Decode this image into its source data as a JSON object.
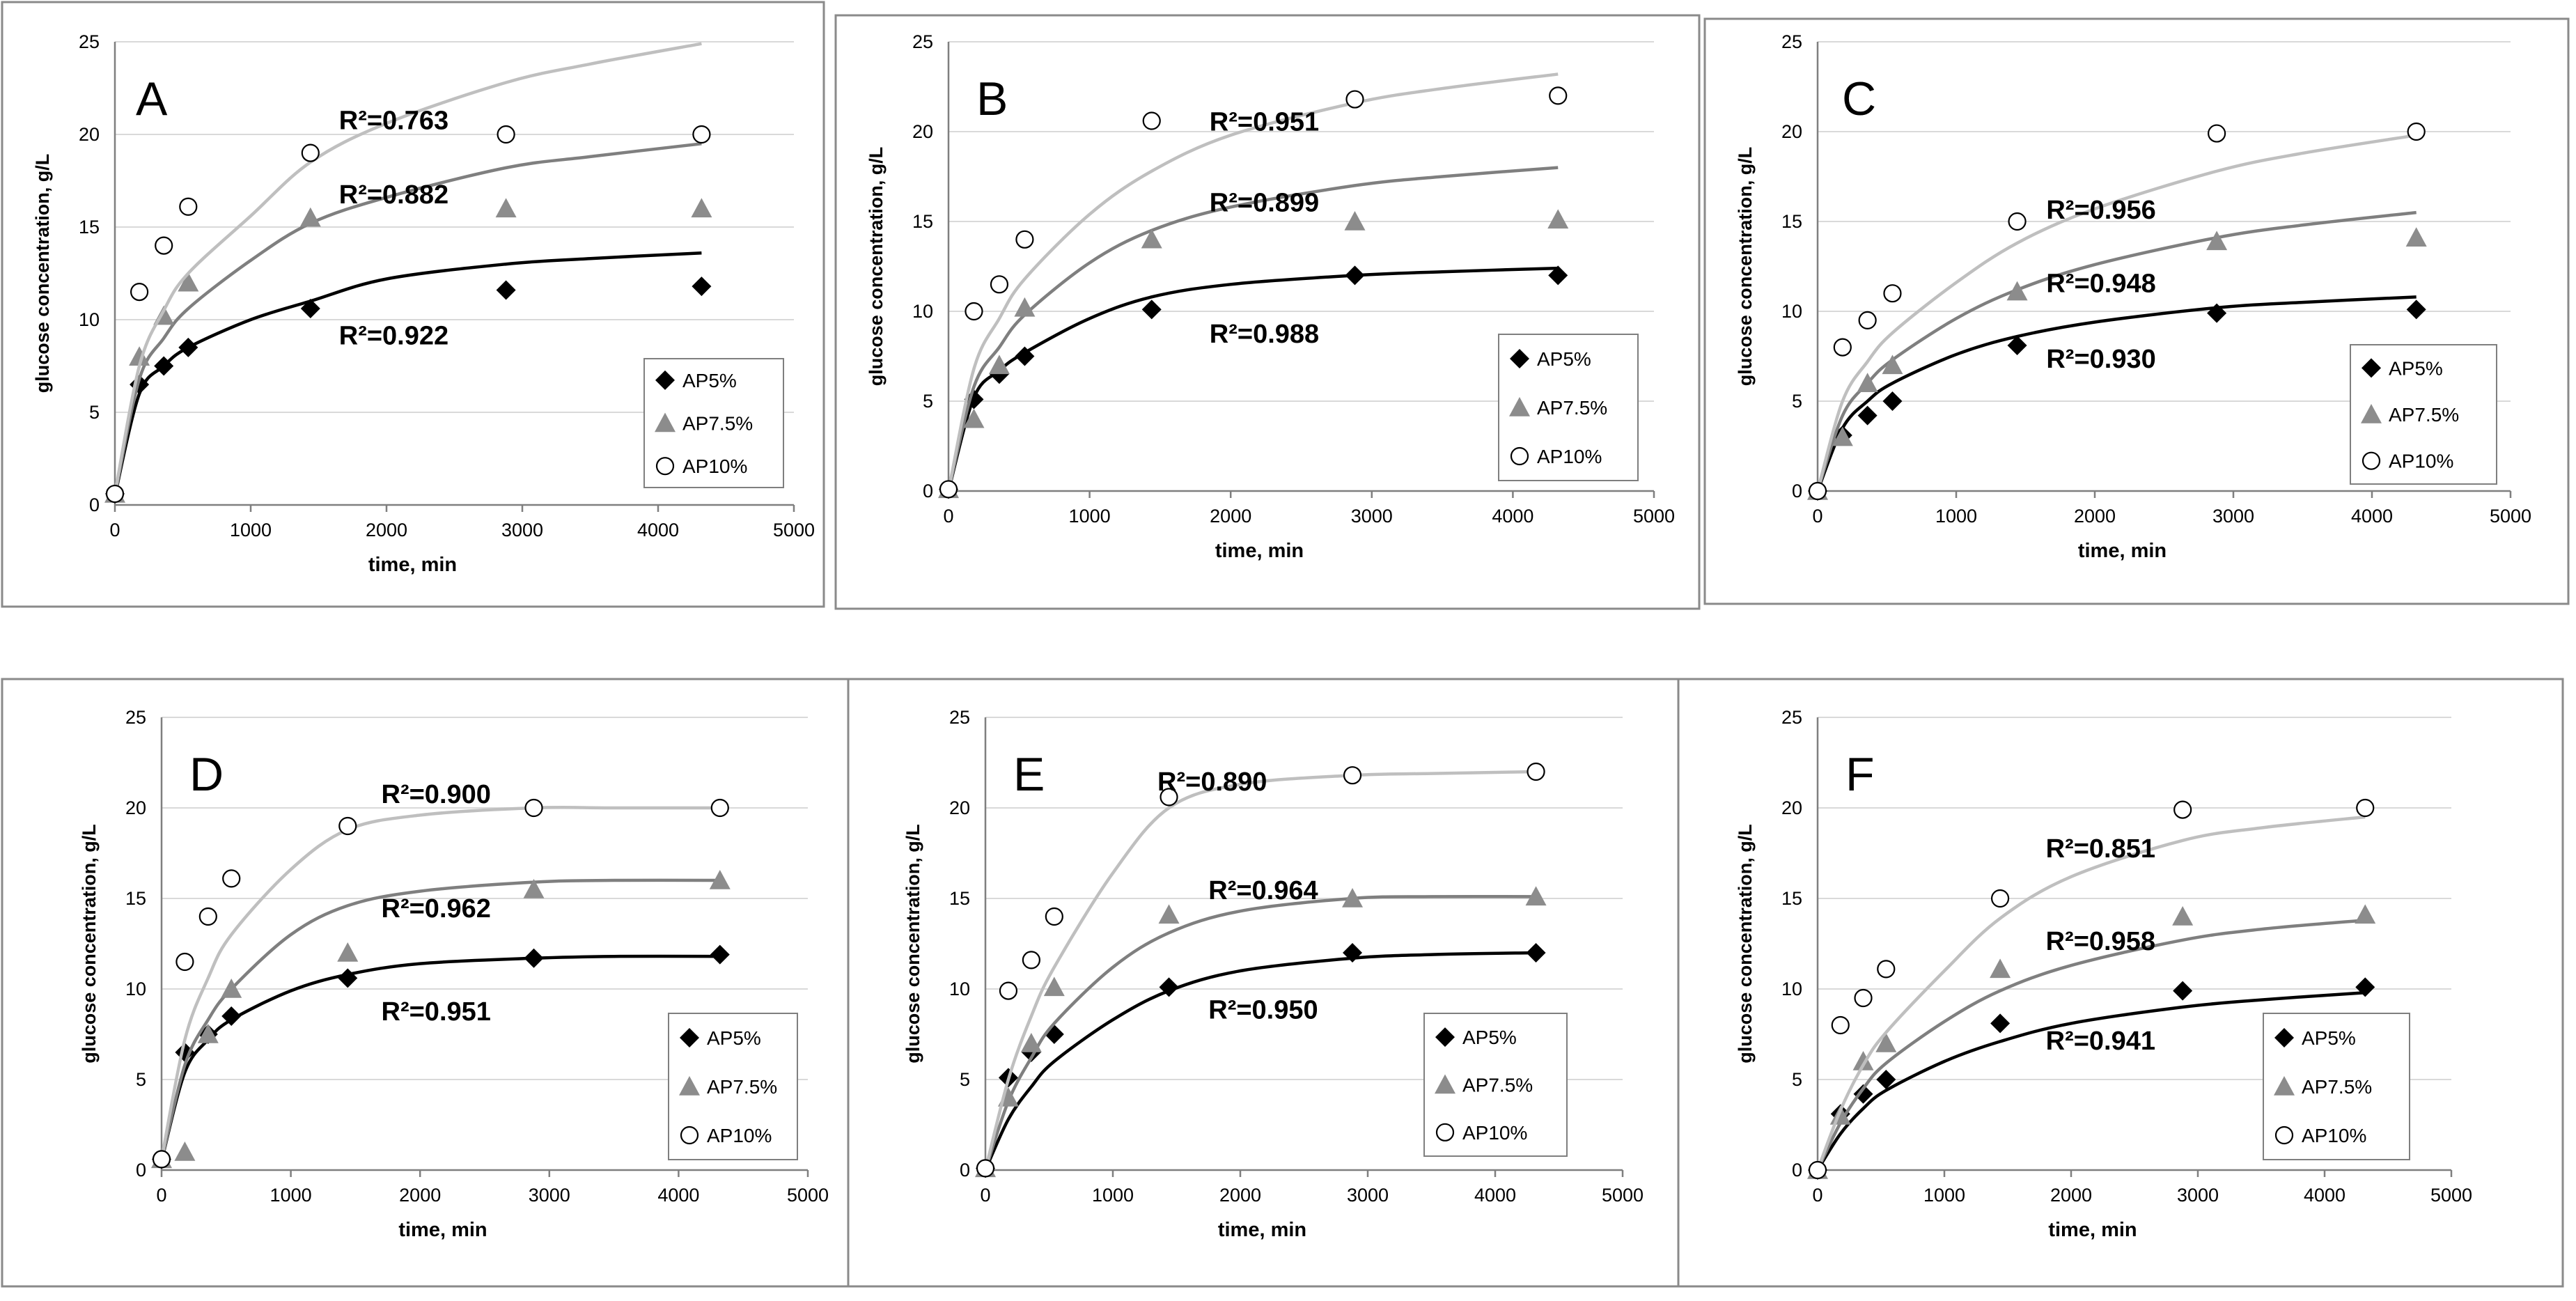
{
  "figure": {
    "colors": {
      "AP5%": "#000000",
      "AP7.5%": "#7f7f7f",
      "AP10%": "#bfbfbf",
      "marker_triangle": "#8c8c8c",
      "grid": "#d9d9d9",
      "frame": "#8a8a8a"
    }
  },
  "chart_data": [
    {
      "panel": "A",
      "type": "scatter",
      "xlabel": "time, min",
      "ylabel": "glucose concentration, g/L",
      "xlim": [
        0,
        5000
      ],
      "ylim": [
        0,
        25
      ],
      "xticks": [
        0,
        1000,
        2000,
        3000,
        4000,
        5000
      ],
      "yticks": [
        0,
        5,
        10,
        15,
        20,
        25
      ],
      "legend": [
        "AP5%",
        "AP7.5%",
        "AP10%"
      ],
      "legend_position": "right",
      "x": [
        0,
        180,
        360,
        540,
        1440,
        2880,
        4320
      ],
      "series": [
        {
          "name": "AP5%",
          "marker": "diamond",
          "values": [
            0.6,
            6.5,
            7.5,
            8.5,
            10.6,
            11.6,
            11.8
          ],
          "fit": {
            "x": [
              0,
              180,
              360,
              540,
              1000,
              1440,
              2000,
              2880,
              3500,
              4320
            ],
            "y": [
              0.5,
              6.0,
              7.5,
              8.5,
              10.0,
              11.0,
              12.2,
              13.0,
              13.3,
              13.6
            ]
          },
          "r2": "R²=0.922",
          "r2_at": [
            1650,
            9.2
          ]
        },
        {
          "name": "AP7.5%",
          "marker": "triangle",
          "values": [
            0.6,
            8.0,
            10.2,
            12.0,
            15.5,
            16.0,
            16.0
          ],
          "fit": {
            "x": [
              0,
              180,
              360,
              540,
              1000,
              1440,
              2000,
              2880,
              3500,
              4320
            ],
            "y": [
              0.5,
              6.8,
              9.0,
              10.6,
              13.2,
              15.2,
              16.6,
              18.2,
              18.8,
              19.5
            ]
          },
          "r2": "R²=0.882",
          "r2_at": [
            1650,
            16.8
          ]
        },
        {
          "name": "AP10%",
          "marker": "circle",
          "values": [
            0.6,
            11.5,
            14.0,
            16.1,
            19.0,
            20.0,
            20.0
          ],
          "fit": {
            "x": [
              0,
              180,
              360,
              540,
              1000,
              1440,
              2000,
              2880,
              3500,
              4320
            ],
            "y": [
              0.6,
              7.5,
              10.5,
              12.5,
              15.6,
              18.5,
              20.6,
              22.8,
              23.8,
              24.9
            ]
          },
          "r2": "R²=0.763",
          "r2_at": [
            1650,
            20.8
          ]
        }
      ]
    },
    {
      "panel": "B",
      "type": "scatter",
      "xlabel": "time, min",
      "ylabel": "glucose concentration, g/L",
      "xlim": [
        0,
        5000
      ],
      "ylim": [
        0,
        25
      ],
      "xticks": [
        0,
        1000,
        2000,
        3000,
        4000,
        5000
      ],
      "yticks": [
        0,
        5,
        10,
        15,
        20,
        25
      ],
      "legend": [
        "AP5%",
        "AP7.5%",
        "AP10%"
      ],
      "legend_position": "right",
      "x": [
        0,
        180,
        360,
        540,
        1440,
        2880,
        4320
      ],
      "series": [
        {
          "name": "AP5%",
          "marker": "diamond",
          "values": [
            0.1,
            5.1,
            6.5,
            7.5,
            10.1,
            12.0,
            12.0
          ],
          "fit": {
            "x": [
              0,
              180,
              360,
              540,
              1000,
              1440,
              2000,
              2880,
              3500,
              4320
            ],
            "y": [
              0.0,
              5.2,
              6.7,
              7.7,
              9.6,
              10.8,
              11.5,
              12.0,
              12.2,
              12.4
            ]
          },
          "r2": "R²=0.988",
          "r2_at": [
            1850,
            8.8
          ]
        },
        {
          "name": "AP7.5%",
          "marker": "triangle",
          "values": [
            0.1,
            4.0,
            7.0,
            10.2,
            14.0,
            15.0,
            15.1
          ],
          "fit": {
            "x": [
              0,
              180,
              360,
              540,
              1000,
              1440,
              2000,
              2880,
              3500,
              4320
            ],
            "y": [
              0.0,
              5.8,
              8.0,
              9.8,
              12.7,
              14.5,
              15.8,
              17.0,
              17.5,
              18.0
            ]
          },
          "r2": "R²=0.899",
          "r2_at": [
            1850,
            16.1
          ]
        },
        {
          "name": "AP10%",
          "marker": "circle",
          "values": [
            0.1,
            10.0,
            11.5,
            14.0,
            20.6,
            21.8,
            22.0
          ],
          "fit": {
            "x": [
              0,
              180,
              360,
              540,
              1000,
              1440,
              2000,
              2880,
              3500,
              4320
            ],
            "y": [
              0.0,
              6.8,
              9.6,
              11.8,
              15.4,
              17.8,
              19.8,
              21.6,
              22.4,
              23.2
            ]
          },
          "r2": "R²=0.951",
          "r2_at": [
            1850,
            20.6
          ]
        }
      ]
    },
    {
      "panel": "C",
      "type": "scatter",
      "xlabel": "time, min",
      "ylabel": "glucose concentration, g/L",
      "xlim": [
        0,
        5000
      ],
      "ylim": [
        0,
        25
      ],
      "xticks": [
        0,
        1000,
        2000,
        3000,
        4000,
        5000
      ],
      "yticks": [
        0,
        5,
        10,
        15,
        20,
        25
      ],
      "legend": [
        "AP5%",
        "AP7.5%",
        "AP10%"
      ],
      "legend_position": "right",
      "x": [
        0,
        180,
        360,
        540,
        1440,
        2880,
        4320
      ],
      "series": [
        {
          "name": "AP5%",
          "marker": "diamond",
          "values": [
            0.0,
            3.1,
            4.2,
            5.0,
            8.1,
            9.9,
            10.1
          ],
          "fit": {
            "x": [
              0,
              180,
              360,
              540,
              1000,
              1440,
              2000,
              2880,
              3500,
              4320
            ],
            "y": [
              0.0,
              3.5,
              5.0,
              6.0,
              7.6,
              8.6,
              9.4,
              10.2,
              10.5,
              10.8
            ]
          },
          "r2": "R²=0.930",
          "r2_at": [
            1650,
            7.4
          ]
        },
        {
          "name": "AP7.5%",
          "marker": "triangle",
          "values": [
            0.0,
            3.0,
            6.0,
            7.0,
            11.1,
            13.9,
            14.1
          ],
          "fit": {
            "x": [
              0,
              180,
              360,
              540,
              1000,
              1440,
              2000,
              2880,
              3500,
              4320
            ],
            "y": [
              0.0,
              4.2,
              6.0,
              7.3,
              9.6,
              11.2,
              12.6,
              14.1,
              14.8,
              15.5
            ]
          },
          "r2": "R²=0.948",
          "r2_at": [
            1650,
            11.6
          ]
        },
        {
          "name": "AP10%",
          "marker": "circle",
          "values": [
            0.0,
            8.0,
            9.5,
            11.0,
            15.0,
            19.9,
            20.0
          ],
          "fit": {
            "x": [
              0,
              180,
              360,
              540,
              1000,
              1440,
              2000,
              2880,
              3500,
              4320
            ],
            "y": [
              0.0,
              5.0,
              7.2,
              8.8,
              11.6,
              13.8,
              15.7,
              17.8,
              18.8,
              19.8
            ]
          },
          "r2": "R²=0.956",
          "r2_at": [
            1650,
            15.7
          ]
        }
      ]
    },
    {
      "panel": "D",
      "type": "scatter",
      "xlabel": "time, min",
      "ylabel": "glucose concentration, g/L",
      "xlim": [
        0,
        5000
      ],
      "ylim": [
        0,
        25
      ],
      "xticks": [
        0,
        1000,
        2000,
        3000,
        4000,
        5000
      ],
      "yticks": [
        0,
        5,
        10,
        15,
        20,
        25
      ],
      "legend": [
        "AP5%",
        "AP7.5%",
        "AP10%"
      ],
      "legend_position": "right",
      "x": [
        0,
        180,
        360,
        540,
        1440,
        2880,
        4320
      ],
      "series": [
        {
          "name": "AP5%",
          "marker": "diamond",
          "values": [
            0.6,
            6.5,
            7.5,
            8.5,
            10.6,
            11.7,
            11.9
          ],
          "fit": {
            "x": [
              0,
              180,
              360,
              540,
              1000,
              1440,
              2000,
              2880,
              3500,
              4320
            ],
            "y": [
              0.5,
              5.4,
              7.2,
              8.3,
              9.9,
              10.8,
              11.4,
              11.7,
              11.8,
              11.8
            ]
          },
          "r2": "R²=0.951",
          "r2_at": [
            1700,
            8.8
          ]
        },
        {
          "name": "AP7.5%",
          "marker": "triangle",
          "values": [
            0.6,
            1.0,
            7.5,
            10.0,
            12.0,
            15.5,
            16.0
          ],
          "fit": {
            "x": [
              0,
              180,
              360,
              540,
              1000,
              1440,
              2000,
              2880,
              3500,
              4320
            ],
            "y": [
              0.5,
              5.8,
              8.3,
              10.0,
              13.0,
              14.6,
              15.4,
              15.9,
              16.0,
              16.0
            ]
          },
          "r2": "R²=0.962",
          "r2_at": [
            1700,
            14.5
          ]
        },
        {
          "name": "AP10%",
          "marker": "circle",
          "values": [
            0.6,
            11.5,
            14.0,
            16.1,
            19.0,
            20.0,
            20.0
          ],
          "fit": {
            "x": [
              0,
              180,
              360,
              540,
              1000,
              1440,
              2000,
              2880,
              3500,
              4320
            ],
            "y": [
              0.6,
              7.2,
              10.6,
              13.0,
              16.6,
              18.8,
              19.6,
              20.0,
              20.0,
              20.0
            ]
          },
          "r2": "R²=0.900",
          "r2_at": [
            1700,
            20.8
          ]
        }
      ]
    },
    {
      "panel": "E",
      "type": "scatter",
      "xlabel": "time, min",
      "ylabel": "glucose concentration, g/L",
      "xlim": [
        0,
        5000
      ],
      "ylim": [
        0,
        25
      ],
      "xticks": [
        0,
        1000,
        2000,
        3000,
        4000,
        5000
      ],
      "yticks": [
        0,
        5,
        10,
        15,
        20,
        25
      ],
      "legend": [
        "AP5%",
        "AP7.5%",
        "AP10%"
      ],
      "legend_position": "right",
      "x": [
        0,
        180,
        360,
        540,
        1440,
        2880,
        4320
      ],
      "series": [
        {
          "name": "AP5%",
          "marker": "diamond",
          "values": [
            0.1,
            5.1,
            6.5,
            7.5,
            10.1,
            12.0,
            12.0
          ],
          "fit": {
            "x": [
              0,
              180,
              360,
              540,
              1000,
              1440,
              2000,
              2880,
              3500,
              4320
            ],
            "y": [
              0.0,
              2.8,
              4.6,
              6.0,
              8.3,
              9.9,
              11.0,
              11.7,
              11.9,
              12.0
            ]
          },
          "r2": "R²=0.950",
          "r2_at": [
            1750,
            8.9
          ]
        },
        {
          "name": "AP7.5%",
          "marker": "triangle",
          "values": [
            0.1,
            4.0,
            7.0,
            10.1,
            14.1,
            15.0,
            15.1
          ],
          "fit": {
            "x": [
              0,
              180,
              360,
              540,
              1000,
              1440,
              2000,
              2880,
              3500,
              4320
            ],
            "y": [
              0.0,
              3.8,
              6.2,
              8.1,
              11.2,
              13.1,
              14.3,
              15.0,
              15.1,
              15.1
            ]
          },
          "r2": "R²=0.964",
          "r2_at": [
            1750,
            15.5
          ]
        },
        {
          "name": "AP10%",
          "marker": "circle",
          "values": [
            0.1,
            9.9,
            11.6,
            14.0,
            20.6,
            21.8,
            22.0
          ],
          "fit": {
            "x": [
              0,
              180,
              360,
              540,
              1000,
              1440,
              2000,
              2880,
              3500,
              4320
            ],
            "y": [
              0.0,
              5.0,
              8.5,
              11.2,
              16.4,
              20.0,
              21.3,
              21.8,
              21.9,
              22.0
            ]
          },
          "r2": "R²=0.890",
          "r2_at": [
            1350,
            21.5
          ]
        }
      ]
    },
    {
      "panel": "F",
      "type": "scatter",
      "xlabel": "time, min",
      "ylabel": "glucose concentration, g/L",
      "xlim": [
        0,
        5000
      ],
      "ylim": [
        0,
        25
      ],
      "xticks": [
        0,
        1000,
        2000,
        3000,
        4000,
        5000
      ],
      "yticks": [
        0,
        5,
        10,
        15,
        20,
        25
      ],
      "legend": [
        "AP5%",
        "AP7.5%",
        "AP10%"
      ],
      "legend_position": "right",
      "x": [
        0,
        180,
        360,
        540,
        1440,
        2880,
        4320
      ],
      "series": [
        {
          "name": "AP5%",
          "marker": "diamond",
          "values": [
            0.0,
            3.1,
            4.2,
            5.0,
            8.1,
            9.9,
            10.1
          ],
          "fit": {
            "x": [
              0,
              180,
              360,
              540,
              1000,
              1440,
              2000,
              2880,
              3500,
              4320
            ],
            "y": [
              0.0,
              2.0,
              3.4,
              4.4,
              6.0,
              7.1,
              8.1,
              9.0,
              9.4,
              9.8
            ]
          },
          "r2": "R²=0.941",
          "r2_at": [
            1800,
            7.2
          ]
        },
        {
          "name": "AP7.5%",
          "marker": "triangle",
          "values": [
            0.0,
            3.0,
            6.0,
            7.0,
            11.1,
            14.0,
            14.1
          ],
          "fit": {
            "x": [
              0,
              180,
              360,
              540,
              1000,
              1440,
              2000,
              2880,
              3500,
              4320
            ],
            "y": [
              0.0,
              2.6,
              4.5,
              5.9,
              8.2,
              9.9,
              11.3,
              12.7,
              13.3,
              13.8
            ]
          },
          "r2": "R²=0.958",
          "r2_at": [
            1800,
            12.7
          ]
        },
        {
          "name": "AP10%",
          "marker": "circle",
          "values": [
            0.0,
            8.0,
            9.5,
            11.1,
            15.0,
            19.9,
            20.0
          ],
          "fit": {
            "x": [
              0,
              180,
              360,
              540,
              1000,
              1440,
              2000,
              2880,
              3500,
              4320
            ],
            "y": [
              0.0,
              3.3,
              5.8,
              7.6,
              11.0,
              13.9,
              16.2,
              18.2,
              18.9,
              19.5
            ]
          },
          "r2": "R²=0.851",
          "r2_at": [
            1800,
            17.8
          ]
        }
      ]
    }
  ]
}
